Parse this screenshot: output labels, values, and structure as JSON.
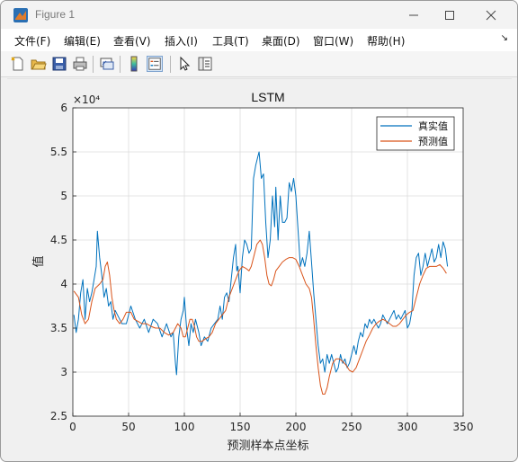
{
  "window": {
    "title": "Figure 1",
    "controls": {
      "minimize": "minimize",
      "maximize": "maximize",
      "close": "close"
    }
  },
  "menu": {
    "items": [
      "文件(F)",
      "编辑(E)",
      "查看(V)",
      "插入(I)",
      "工具(T)",
      "桌面(D)",
      "窗口(W)",
      "帮助(H)"
    ],
    "overflow_glyph": "↘"
  },
  "toolbar": {
    "buttons": [
      {
        "icon": "new-figure-icon"
      },
      {
        "icon": "open-folder-icon"
      },
      {
        "icon": "save-icon"
      },
      {
        "icon": "print-icon"
      },
      {
        "icon": "link-icon"
      },
      {
        "icon": "colorbar-icon"
      },
      {
        "icon": "legend-icon",
        "active": true
      },
      {
        "icon": "pointer-icon"
      },
      {
        "icon": "property-inspector-icon"
      }
    ]
  },
  "colors": {
    "true_series": "#0072BD",
    "pred_series": "#D95319",
    "grid": "#dcdcdc",
    "axes_bg": "#ffffff"
  },
  "chart_data": {
    "type": "line",
    "title": "LSTM",
    "xlabel": "预测样本点坐标",
    "ylabel": "值",
    "y_exponent": "×10⁴",
    "xlim": [
      0,
      350
    ],
    "ylim": [
      2.5,
      6
    ],
    "xticks": [
      0,
      50,
      100,
      150,
      200,
      250,
      300,
      350
    ],
    "yticks": [
      2.5,
      3,
      3.5,
      4,
      4.5,
      5,
      5.5,
      6
    ],
    "grid": true,
    "legend_position": "top-right",
    "series": [
      {
        "name": "真实值",
        "color": "#0072BD",
        "points": [
          [
            1,
            3.65
          ],
          [
            3,
            3.45
          ],
          [
            5,
            3.6
          ],
          [
            7,
            3.9
          ],
          [
            9,
            4.05
          ],
          [
            11,
            3.6
          ],
          [
            13,
            3.95
          ],
          [
            15,
            3.8
          ],
          [
            17,
            3.9
          ],
          [
            19,
            4.05
          ],
          [
            21,
            4.2
          ],
          [
            22,
            4.6
          ],
          [
            24,
            4.3
          ],
          [
            26,
            4.1
          ],
          [
            28,
            3.85
          ],
          [
            30,
            3.95
          ],
          [
            32,
            3.75
          ],
          [
            34,
            3.8
          ],
          [
            36,
            3.6
          ],
          [
            38,
            3.7
          ],
          [
            40,
            3.65
          ],
          [
            44,
            3.55
          ],
          [
            48,
            3.55
          ],
          [
            52,
            3.75
          ],
          [
            56,
            3.6
          ],
          [
            60,
            3.5
          ],
          [
            64,
            3.6
          ],
          [
            68,
            3.45
          ],
          [
            72,
            3.6
          ],
          [
            76,
            3.55
          ],
          [
            80,
            3.4
          ],
          [
            84,
            3.55
          ],
          [
            88,
            3.4
          ],
          [
            90,
            3.45
          ],
          [
            92,
            3.1
          ],
          [
            93,
            2.97
          ],
          [
            95,
            3.4
          ],
          [
            97,
            3.6
          ],
          [
            99,
            3.7
          ],
          [
            100,
            3.85
          ],
          [
            102,
            3.5
          ],
          [
            104,
            3.3
          ],
          [
            106,
            3.55
          ],
          [
            108,
            3.45
          ],
          [
            110,
            3.6
          ],
          [
            113,
            3.45
          ],
          [
            115,
            3.3
          ],
          [
            118,
            3.4
          ],
          [
            121,
            3.35
          ],
          [
            124,
            3.5
          ],
          [
            127,
            3.55
          ],
          [
            130,
            3.6
          ],
          [
            132,
            3.75
          ],
          [
            134,
            3.6
          ],
          [
            136,
            3.85
          ],
          [
            138,
            3.9
          ],
          [
            140,
            3.8
          ],
          [
            142,
            4.05
          ],
          [
            144,
            4.3
          ],
          [
            146,
            4.45
          ],
          [
            147,
            4.15
          ],
          [
            148,
            4.2
          ],
          [
            150,
            3.9
          ],
          [
            152,
            4.3
          ],
          [
            154,
            4.5
          ],
          [
            156,
            4.45
          ],
          [
            158,
            4.35
          ],
          [
            160,
            4.4
          ],
          [
            162,
            5.2
          ],
          [
            164,
            5.35
          ],
          [
            166,
            5.45
          ],
          [
            167,
            5.5
          ],
          [
            169,
            5.2
          ],
          [
            171,
            5.25
          ],
          [
            173,
            4.7
          ],
          [
            175,
            4.3
          ],
          [
            177,
            4.5
          ],
          [
            179,
            5.0
          ],
          [
            181,
            4.65
          ],
          [
            182,
            5.1
          ],
          [
            184,
            4.5
          ],
          [
            186,
            5.0
          ],
          [
            188,
            4.7
          ],
          [
            190,
            4.7
          ],
          [
            192,
            4.75
          ],
          [
            194,
            5.15
          ],
          [
            196,
            5.05
          ],
          [
            198,
            5.2
          ],
          [
            200,
            5.0
          ],
          [
            202,
            4.6
          ],
          [
            204,
            4.2
          ],
          [
            206,
            4.3
          ],
          [
            208,
            4.2
          ],
          [
            210,
            4.35
          ],
          [
            212,
            4.6
          ],
          [
            214,
            4.25
          ],
          [
            216,
            3.9
          ],
          [
            218,
            3.6
          ],
          [
            220,
            3.3
          ],
          [
            222,
            3.1
          ],
          [
            224,
            3.15
          ],
          [
            226,
            3.0
          ],
          [
            228,
            3.2
          ],
          [
            230,
            3.1
          ],
          [
            232,
            3.2
          ],
          [
            234,
            3.1
          ],
          [
            236,
            3.0
          ],
          [
            238,
            3.05
          ],
          [
            240,
            3.2
          ],
          [
            242,
            3.1
          ],
          [
            244,
            3.15
          ],
          [
            246,
            3.05
          ],
          [
            248,
            3.1
          ],
          [
            250,
            3.2
          ],
          [
            252,
            3.3
          ],
          [
            254,
            3.2
          ],
          [
            256,
            3.35
          ],
          [
            258,
            3.45
          ],
          [
            260,
            3.4
          ],
          [
            262,
            3.55
          ],
          [
            264,
            3.5
          ],
          [
            266,
            3.6
          ],
          [
            268,
            3.55
          ],
          [
            270,
            3.6
          ],
          [
            272,
            3.55
          ],
          [
            274,
            3.5
          ],
          [
            276,
            3.55
          ],
          [
            278,
            3.65
          ],
          [
            280,
            3.6
          ],
          [
            282,
            3.55
          ],
          [
            284,
            3.6
          ],
          [
            286,
            3.65
          ],
          [
            288,
            3.7
          ],
          [
            290,
            3.6
          ],
          [
            292,
            3.65
          ],
          [
            294,
            3.6
          ],
          [
            296,
            3.65
          ],
          [
            298,
            3.7
          ],
          [
            300,
            3.5
          ],
          [
            302,
            3.55
          ],
          [
            304,
            3.7
          ],
          [
            306,
            4.1
          ],
          [
            308,
            4.3
          ],
          [
            310,
            4.35
          ],
          [
            312,
            4.1
          ],
          [
            314,
            4.2
          ],
          [
            316,
            4.35
          ],
          [
            318,
            4.2
          ],
          [
            320,
            4.3
          ],
          [
            322,
            4.4
          ],
          [
            324,
            4.25
          ],
          [
            326,
            4.3
          ],
          [
            328,
            4.45
          ],
          [
            330,
            4.3
          ],
          [
            332,
            4.48
          ],
          [
            334,
            4.4
          ],
          [
            336,
            4.2
          ]
        ]
      },
      {
        "name": "预测值",
        "color": "#D95319",
        "points": [
          [
            1,
            3.92
          ],
          [
            5,
            3.85
          ],
          [
            8,
            3.65
          ],
          [
            11,
            3.55
          ],
          [
            14,
            3.6
          ],
          [
            17,
            3.8
          ],
          [
            20,
            3.95
          ],
          [
            24,
            4.0
          ],
          [
            27,
            4.05
          ],
          [
            29,
            4.2
          ],
          [
            31,
            4.25
          ],
          [
            33,
            4.1
          ],
          [
            35,
            3.85
          ],
          [
            37,
            3.7
          ],
          [
            39,
            3.6
          ],
          [
            42,
            3.55
          ],
          [
            45,
            3.6
          ],
          [
            48,
            3.68
          ],
          [
            52,
            3.68
          ],
          [
            55,
            3.6
          ],
          [
            58,
            3.58
          ],
          [
            62,
            3.55
          ],
          [
            66,
            3.55
          ],
          [
            70,
            3.52
          ],
          [
            74,
            3.5
          ],
          [
            78,
            3.5
          ],
          [
            82,
            3.45
          ],
          [
            86,
            3.42
          ],
          [
            90,
            3.45
          ],
          [
            94,
            3.55
          ],
          [
            97,
            3.5
          ],
          [
            99,
            3.4
          ],
          [
            101,
            3.4
          ],
          [
            103,
            3.5
          ],
          [
            105,
            3.6
          ],
          [
            107,
            3.6
          ],
          [
            109,
            3.52
          ],
          [
            111,
            3.4
          ],
          [
            113,
            3.35
          ],
          [
            116,
            3.35
          ],
          [
            119,
            3.38
          ],
          [
            122,
            3.4
          ],
          [
            125,
            3.45
          ],
          [
            128,
            3.55
          ],
          [
            131,
            3.6
          ],
          [
            134,
            3.65
          ],
          [
            137,
            3.7
          ],
          [
            140,
            3.85
          ],
          [
            143,
            3.95
          ],
          [
            146,
            4.05
          ],
          [
            149,
            4.15
          ],
          [
            152,
            4.2
          ],
          [
            155,
            4.18
          ],
          [
            158,
            4.15
          ],
          [
            160,
            4.2
          ],
          [
            162,
            4.3
          ],
          [
            165,
            4.45
          ],
          [
            168,
            4.5
          ],
          [
            170,
            4.45
          ],
          [
            172,
            4.3
          ],
          [
            174,
            4.1
          ],
          [
            176,
            4.0
          ],
          [
            178,
            3.98
          ],
          [
            180,
            4.05
          ],
          [
            182,
            4.15
          ],
          [
            185,
            4.2
          ],
          [
            188,
            4.25
          ],
          [
            191,
            4.28
          ],
          [
            194,
            4.3
          ],
          [
            197,
            4.3
          ],
          [
            200,
            4.28
          ],
          [
            203,
            4.2
          ],
          [
            206,
            4.1
          ],
          [
            209,
            4.0
          ],
          [
            212,
            3.95
          ],
          [
            214,
            3.85
          ],
          [
            216,
            3.6
          ],
          [
            218,
            3.3
          ],
          [
            220,
            3.05
          ],
          [
            222,
            2.85
          ],
          [
            224,
            2.75
          ],
          [
            226,
            2.75
          ],
          [
            228,
            2.82
          ],
          [
            230,
            2.95
          ],
          [
            233,
            3.1
          ],
          [
            236,
            3.15
          ],
          [
            239,
            3.15
          ],
          [
            242,
            3.12
          ],
          [
            245,
            3.08
          ],
          [
            248,
            3.02
          ],
          [
            251,
            3.0
          ],
          [
            254,
            3.05
          ],
          [
            257,
            3.15
          ],
          [
            260,
            3.25
          ],
          [
            263,
            3.35
          ],
          [
            266,
            3.42
          ],
          [
            269,
            3.5
          ],
          [
            272,
            3.55
          ],
          [
            275,
            3.58
          ],
          [
            278,
            3.6
          ],
          [
            281,
            3.58
          ],
          [
            284,
            3.55
          ],
          [
            287,
            3.52
          ],
          [
            290,
            3.52
          ],
          [
            293,
            3.55
          ],
          [
            296,
            3.6
          ],
          [
            299,
            3.65
          ],
          [
            302,
            3.68
          ],
          [
            305,
            3.7
          ],
          [
            308,
            3.85
          ],
          [
            311,
            4.0
          ],
          [
            314,
            4.1
          ],
          [
            317,
            4.18
          ],
          [
            320,
            4.2
          ],
          [
            323,
            4.2
          ],
          [
            326,
            4.2
          ],
          [
            329,
            4.22
          ],
          [
            332,
            4.18
          ],
          [
            335,
            4.12
          ]
        ]
      }
    ]
  }
}
